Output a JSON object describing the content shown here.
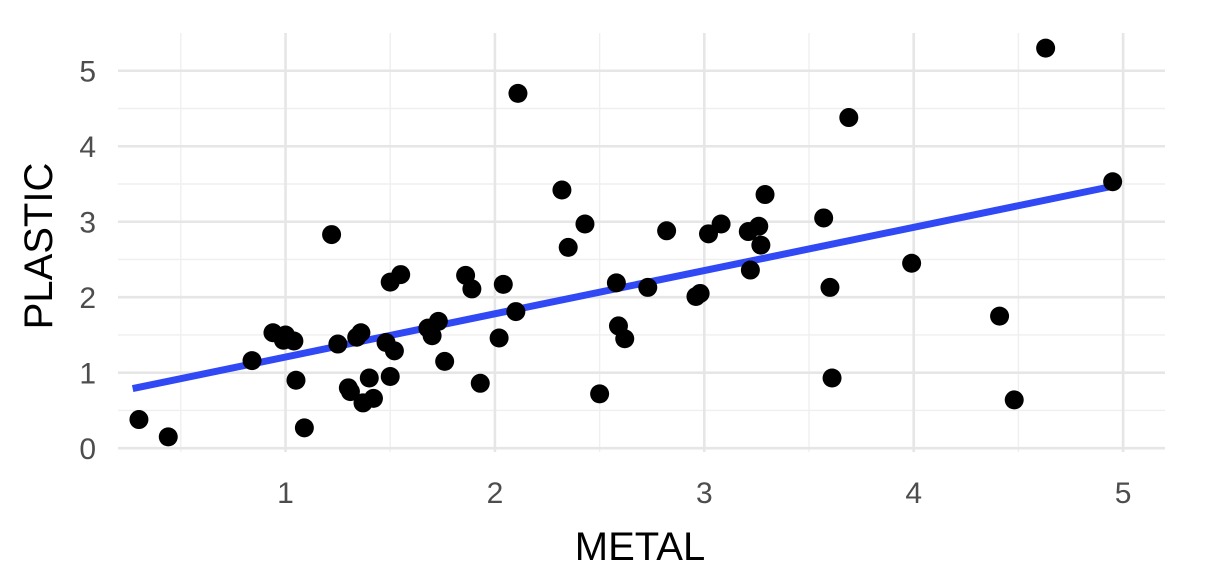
{
  "chart_data": {
    "type": "scatter",
    "xlabel": "METAL",
    "ylabel": "PLASTIC",
    "xlim": [
      0.2,
      5.2
    ],
    "ylim": [
      -0.05,
      5.5
    ],
    "x_ticks": [
      1,
      2,
      3,
      4,
      5
    ],
    "y_ticks": [
      0,
      1,
      2,
      3,
      4,
      5
    ],
    "grid": true,
    "colors": {
      "points": "#000000",
      "fit_line": "#3049f5",
      "grid": "#e6e6e6"
    },
    "points": [
      {
        "x": 0.3,
        "y": 0.38
      },
      {
        "x": 0.44,
        "y": 0.15
      },
      {
        "x": 0.84,
        "y": 1.16
      },
      {
        "x": 0.94,
        "y": 1.53
      },
      {
        "x": 0.99,
        "y": 1.43
      },
      {
        "x": 1.0,
        "y": 1.5
      },
      {
        "x": 1.04,
        "y": 1.42
      },
      {
        "x": 1.05,
        "y": 0.9
      },
      {
        "x": 1.09,
        "y": 0.27
      },
      {
        "x": 1.22,
        "y": 2.83
      },
      {
        "x": 1.25,
        "y": 1.38
      },
      {
        "x": 1.3,
        "y": 0.8
      },
      {
        "x": 1.31,
        "y": 0.75
      },
      {
        "x": 1.34,
        "y": 1.47
      },
      {
        "x": 1.36,
        "y": 1.53
      },
      {
        "x": 1.37,
        "y": 0.6
      },
      {
        "x": 1.4,
        "y": 0.93
      },
      {
        "x": 1.42,
        "y": 0.66
      },
      {
        "x": 1.48,
        "y": 1.4
      },
      {
        "x": 1.5,
        "y": 0.95
      },
      {
        "x": 1.5,
        "y": 2.2
      },
      {
        "x": 1.52,
        "y": 1.29
      },
      {
        "x": 1.55,
        "y": 2.3
      },
      {
        "x": 1.68,
        "y": 1.59
      },
      {
        "x": 1.7,
        "y": 1.49
      },
      {
        "x": 1.73,
        "y": 1.68
      },
      {
        "x": 1.76,
        "y": 1.15
      },
      {
        "x": 1.86,
        "y": 2.29
      },
      {
        "x": 1.89,
        "y": 2.11
      },
      {
        "x": 1.93,
        "y": 0.86
      },
      {
        "x": 2.02,
        "y": 1.46
      },
      {
        "x": 2.04,
        "y": 2.17
      },
      {
        "x": 2.1,
        "y": 1.81
      },
      {
        "x": 2.11,
        "y": 4.7
      },
      {
        "x": 2.32,
        "y": 3.42
      },
      {
        "x": 2.35,
        "y": 2.66
      },
      {
        "x": 2.43,
        "y": 2.97
      },
      {
        "x": 2.5,
        "y": 0.72
      },
      {
        "x": 2.58,
        "y": 2.19
      },
      {
        "x": 2.59,
        "y": 1.62
      },
      {
        "x": 2.62,
        "y": 1.45
      },
      {
        "x": 2.73,
        "y": 2.13
      },
      {
        "x": 2.82,
        "y": 2.88
      },
      {
        "x": 2.96,
        "y": 2.01
      },
      {
        "x": 2.98,
        "y": 2.05
      },
      {
        "x": 3.02,
        "y": 2.84
      },
      {
        "x": 3.08,
        "y": 2.97
      },
      {
        "x": 3.21,
        "y": 2.87
      },
      {
        "x": 3.22,
        "y": 2.36
      },
      {
        "x": 3.26,
        "y": 2.94
      },
      {
        "x": 3.27,
        "y": 2.69
      },
      {
        "x": 3.29,
        "y": 3.36
      },
      {
        "x": 3.57,
        "y": 3.05
      },
      {
        "x": 3.6,
        "y": 2.13
      },
      {
        "x": 3.61,
        "y": 0.93
      },
      {
        "x": 3.69,
        "y": 4.38
      },
      {
        "x": 3.99,
        "y": 2.45
      },
      {
        "x": 4.41,
        "y": 1.75
      },
      {
        "x": 4.48,
        "y": 0.64
      },
      {
        "x": 4.63,
        "y": 5.3
      },
      {
        "x": 4.95,
        "y": 3.53
      }
    ],
    "fit_line": {
      "x": [
        0.27,
        4.95
      ],
      "y": [
        0.79,
        3.47
      ]
    }
  }
}
